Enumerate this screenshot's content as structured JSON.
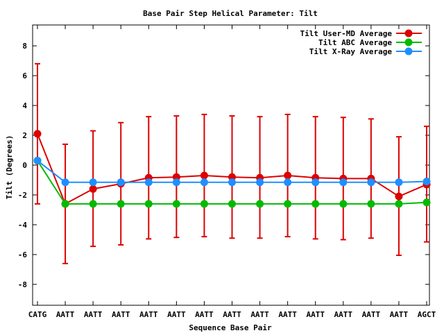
{
  "chart_data": {
    "type": "line",
    "title": "Base Pair Step Helical Parameter: Tilt",
    "xlabel": "Sequence Base Pair",
    "ylabel": "Tilt (Degrees)",
    "categories": [
      "CATG",
      "AATT",
      "AATT",
      "AATT",
      "AATT",
      "AATT",
      "AATT",
      "AATT",
      "AATT",
      "AATT",
      "AATT",
      "AATT",
      "AATT",
      "AATT",
      "AGCT"
    ],
    "ylim": [
      -9.4,
      9.4
    ],
    "yticks": [
      -8,
      -6,
      -4,
      -2,
      0,
      2,
      4,
      6,
      8
    ],
    "grid": false,
    "legend_position": "top-right",
    "series": [
      {
        "name": "Tilt User-MD Average",
        "color": "#dd0000",
        "values": [
          2.1,
          -2.6,
          -1.6,
          -1.25,
          -0.85,
          -0.8,
          -0.7,
          -0.8,
          -0.85,
          -0.7,
          -0.85,
          -0.9,
          -0.9,
          -2.1,
          -1.3
        ],
        "error_low": [
          -2.6,
          -6.6,
          -5.45,
          -5.35,
          -4.95,
          -4.85,
          -4.8,
          -4.9,
          -4.9,
          -4.8,
          -4.95,
          -5.0,
          -4.9,
          -6.05,
          -5.15
        ],
        "error_high": [
          6.8,
          1.4,
          2.3,
          2.85,
          3.25,
          3.3,
          3.4,
          3.3,
          3.25,
          3.4,
          3.25,
          3.2,
          3.1,
          1.9,
          2.6
        ]
      },
      {
        "name": "Tilt ABC Average",
        "color": "#00bb00",
        "values": [
          0.3,
          -2.6,
          -2.6,
          -2.6,
          -2.6,
          -2.6,
          -2.6,
          -2.6,
          -2.6,
          -2.6,
          -2.6,
          -2.6,
          -2.6,
          -2.6,
          -2.5
        ]
      },
      {
        "name": "Tilt X-Ray Average",
        "color": "#1e8fff",
        "values": [
          0.3,
          -1.15,
          -1.15,
          -1.15,
          -1.15,
          -1.15,
          -1.15,
          -1.15,
          -1.15,
          -1.15,
          -1.15,
          -1.15,
          -1.15,
          -1.15,
          -1.1
        ]
      }
    ]
  }
}
